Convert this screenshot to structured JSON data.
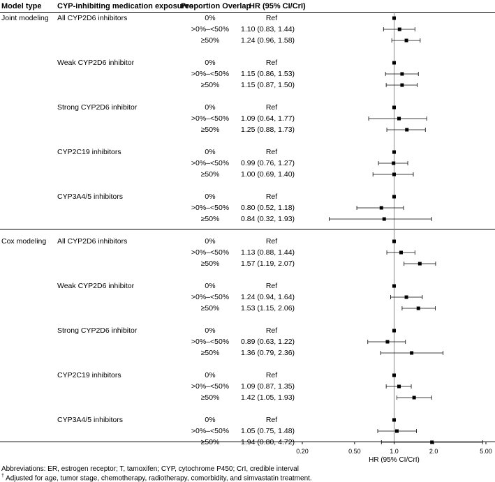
{
  "headers": {
    "model_type": "Model type",
    "exposure": "CYP-inhibiting medication exposures",
    "overlap": "Proportion Overlap",
    "hr": "HR (95% CI/CrI)"
  },
  "chart_data": {
    "type": "forest",
    "xlabel": "HR (95% CI/CrI)",
    "x_scale": "log",
    "xlim": [
      0.2,
      5.0
    ],
    "x_ticks": [
      0.2,
      0.5,
      1.0,
      2.0,
      5.0
    ],
    "x_tick_labels": [
      "0.20",
      "0.50",
      "1.0",
      "2.0",
      "5.00"
    ],
    "reference_line": 1.0,
    "groups": [
      {
        "model": "Joint modeling",
        "exposures": [
          {
            "name": "All CYP2D6 inhibitors",
            "rows": [
              {
                "overlap": "0%",
                "hr_text": "Ref",
                "hr": 1.0,
                "lo": null,
                "hi": null
              },
              {
                "overlap": ">0%–<50%",
                "hr_text": "1.10 (0.83, 1.44)",
                "hr": 1.1,
                "lo": 0.83,
                "hi": 1.44
              },
              {
                "overlap": "≥50%",
                "hr_text": "1.24 (0.96, 1.58)",
                "hr": 1.24,
                "lo": 0.96,
                "hi": 1.58
              }
            ]
          },
          {
            "name": "Weak CYP2D6 inhibitor",
            "rows": [
              {
                "overlap": "0%",
                "hr_text": "Ref",
                "hr": 1.0,
                "lo": null,
                "hi": null
              },
              {
                "overlap": ">0%–<50%",
                "hr_text": "1.15 (0.86, 1.53)",
                "hr": 1.15,
                "lo": 0.86,
                "hi": 1.53
              },
              {
                "overlap": "≥50%",
                "hr_text": "1.15 (0.87, 1.50)",
                "hr": 1.15,
                "lo": 0.87,
                "hi": 1.5
              }
            ]
          },
          {
            "name": "Strong CYP2D6 inhibitor",
            "rows": [
              {
                "overlap": "0%",
                "hr_text": "Ref",
                "hr": 1.0,
                "lo": null,
                "hi": null
              },
              {
                "overlap": ">0%–<50%",
                "hr_text": "1.09 (0.64, 1.77)",
                "hr": 1.09,
                "lo": 0.64,
                "hi": 1.77
              },
              {
                "overlap": "≥50%",
                "hr_text": "1.25 (0.88, 1.73)",
                "hr": 1.25,
                "lo": 0.88,
                "hi": 1.73
              }
            ]
          },
          {
            "name": "CYP2C19 inhibitors",
            "rows": [
              {
                "overlap": "0%",
                "hr_text": "Ref",
                "hr": 1.0,
                "lo": null,
                "hi": null
              },
              {
                "overlap": ">0%–<50%",
                "hr_text": "0.99 (0.76, 1.27)",
                "hr": 0.99,
                "lo": 0.76,
                "hi": 1.27
              },
              {
                "overlap": "≥50%",
                "hr_text": "1.00 (0.69, 1.40)",
                "hr": 1.0,
                "lo": 0.69,
                "hi": 1.4
              }
            ]
          },
          {
            "name": "CYP3A4/5 inhibitors",
            "rows": [
              {
                "overlap": "0%",
                "hr_text": "Ref",
                "hr": 1.0,
                "lo": null,
                "hi": null
              },
              {
                "overlap": ">0%–<50%",
                "hr_text": "0.80 (0.52, 1.18)",
                "hr": 0.8,
                "lo": 0.52,
                "hi": 1.18
              },
              {
                "overlap": "≥50%",
                "hr_text": "0.84 (0.32, 1.93)",
                "hr": 0.84,
                "lo": 0.32,
                "hi": 1.93
              }
            ]
          }
        ]
      },
      {
        "model": "Cox modeling",
        "exposures": [
          {
            "name": "All CYP2D6 inhibitors",
            "rows": [
              {
                "overlap": "0%",
                "hr_text": "Ref",
                "hr": 1.0,
                "lo": null,
                "hi": null
              },
              {
                "overlap": ">0%–<50%",
                "hr_text": "1.13 (0.88, 1.44)",
                "hr": 1.13,
                "lo": 0.88,
                "hi": 1.44
              },
              {
                "overlap": "≥50%",
                "hr_text": "1.57 (1.19, 2.07)",
                "hr": 1.57,
                "lo": 1.19,
                "hi": 2.07
              }
            ]
          },
          {
            "name": "Weak CYP2D6 inhibitor",
            "rows": [
              {
                "overlap": "0%",
                "hr_text": "Ref",
                "hr": 1.0,
                "lo": null,
                "hi": null
              },
              {
                "overlap": ">0%–<50%",
                "hr_text": "1.24 (0.94, 1.64)",
                "hr": 1.24,
                "lo": 0.94,
                "hi": 1.64
              },
              {
                "overlap": "≥50%",
                "hr_text": "1.53 (1.15, 2.06)",
                "hr": 1.53,
                "lo": 1.15,
                "hi": 2.06
              }
            ]
          },
          {
            "name": "Strong CYP2D6 inhibitor",
            "rows": [
              {
                "overlap": "0%",
                "hr_text": "Ref",
                "hr": 1.0,
                "lo": null,
                "hi": null
              },
              {
                "overlap": ">0%–<50%",
                "hr_text": "0.89 (0.63, 1.22)",
                "hr": 0.89,
                "lo": 0.63,
                "hi": 1.22
              },
              {
                "overlap": "≥50%",
                "hr_text": "1.36 (0.79, 2.36)",
                "hr": 1.36,
                "lo": 0.79,
                "hi": 2.36
              }
            ]
          },
          {
            "name": "CYP2C19 inhibitors",
            "rows": [
              {
                "overlap": "0%",
                "hr_text": "Ref",
                "hr": 1.0,
                "lo": null,
                "hi": null
              },
              {
                "overlap": ">0%–<50%",
                "hr_text": "1.09 (0.87, 1.35)",
                "hr": 1.09,
                "lo": 0.87,
                "hi": 1.35
              },
              {
                "overlap": "≥50%",
                "hr_text": "1.42 (1.05, 1.93)",
                "hr": 1.42,
                "lo": 1.05,
                "hi": 1.93
              }
            ]
          },
          {
            "name": "CYP3A4/5 inhibitors",
            "rows": [
              {
                "overlap": "0%",
                "hr_text": "Ref",
                "hr": 1.0,
                "lo": null,
                "hi": null
              },
              {
                "overlap": ">0%–<50%",
                "hr_text": "1.05 (0.75, 1.48)",
                "hr": 1.05,
                "lo": 0.75,
                "hi": 1.48
              },
              {
                "overlap": "≥50%",
                "hr_text": "1.94 (0.80, 4.72)",
                "hr": 1.94,
                "lo": 0.8,
                "hi": 4.72
              }
            ]
          }
        ]
      }
    ]
  },
  "footnotes": {
    "abbreviations": "Abbreviations: ER, estrogen receptor; T, tamoxifen; CYP, cytochrome P450; CrI, credible interval",
    "dagger": "†",
    "adjusted": "Adjusted for age, tumor stage, chemotherapy, radiotherapy, comorbidity, and simvastatin treatment."
  }
}
